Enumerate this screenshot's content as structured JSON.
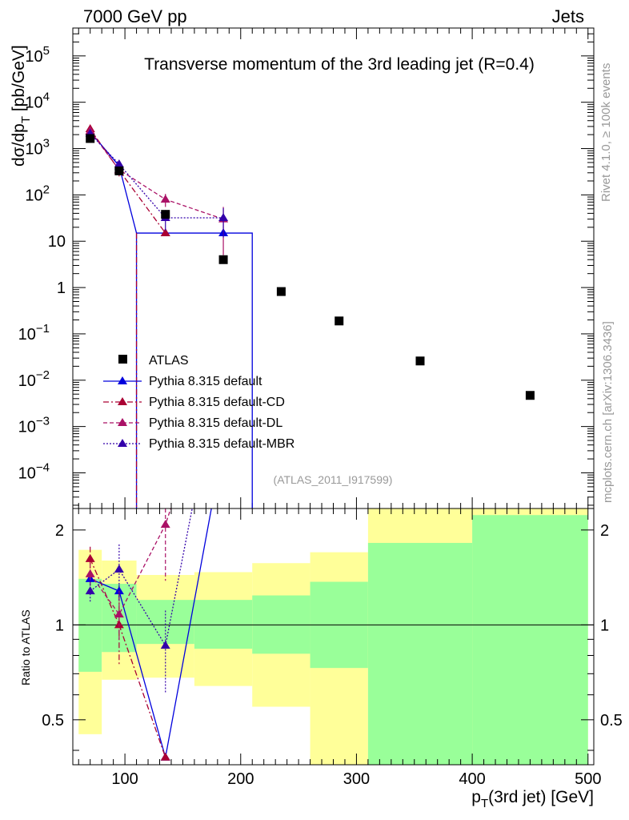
{
  "header": {
    "left": "7000 GeV pp",
    "right": "Jets"
  },
  "side_labels": {
    "rivet": "Rivet 4.1.0, ≥ 100k events",
    "mcplots": "mcplots.cern.ch [arXiv:1306.3436]"
  },
  "chart_data": {
    "type": "scatter",
    "title": "Transverse momentum of the 3rd leading jet (R=0.4)",
    "analysis_id": "(ATLAS_2011_I917599)",
    "xlabel_main": "p",
    "xlabel_sub": "T",
    "xlabel_rest": "(3rd jet) [GeV]",
    "ylabel_main": "dσ/dp",
    "ylabel_sub": "T",
    "ylabel_rest": " [pb/GeV]",
    "ratio_ylabel": "Ratio to ATLAS",
    "xlim": [
      55,
      505
    ],
    "ylim": [
      1.7e-05,
      400000
    ],
    "ratio_ylim": [
      0.36,
      2.34
    ],
    "x_ticks": [
      {
        "v": 100,
        "label": "100"
      },
      {
        "v": 200,
        "label": "200"
      },
      {
        "v": 300,
        "label": "300"
      },
      {
        "v": 400,
        "label": "400"
      },
      {
        "v": 500,
        "label": "500"
      }
    ],
    "y_ticks": [
      {
        "v": 0.0001,
        "base": "10",
        "exp": "−4"
      },
      {
        "v": 0.001,
        "base": "10",
        "exp": "−3"
      },
      {
        "v": 0.01,
        "base": "10",
        "exp": "−2"
      },
      {
        "v": 0.1,
        "base": "10",
        "exp": "−1"
      },
      {
        "v": 1,
        "base": "1",
        "exp": ""
      },
      {
        "v": 10,
        "base": "10",
        "exp": ""
      },
      {
        "v": 100,
        "base": "10",
        "exp": "2"
      },
      {
        "v": 1000,
        "base": "10",
        "exp": "3"
      },
      {
        "v": 10000,
        "base": "10",
        "exp": "4"
      },
      {
        "v": 100000,
        "base": "10",
        "exp": "5"
      }
    ],
    "ratio_ticks": [
      {
        "v": 0.5,
        "label": "0.5"
      },
      {
        "v": 1,
        "label": "1"
      },
      {
        "v": 2,
        "label": "2"
      }
    ],
    "data": {
      "name": "ATLAS",
      "x": [
        70,
        95,
        135,
        185,
        235,
        285,
        355,
        450
      ],
      "y": [
        1650,
        330,
        38,
        4.0,
        0.82,
        0.19,
        0.026,
        0.0047
      ]
    },
    "bins": [
      {
        "lo": 60,
        "hi": 80,
        "g_lo": 0.71,
        "g_hi": 1.4,
        "y_lo": 0.45,
        "y_hi": 1.73
      },
      {
        "lo": 80,
        "hi": 110,
        "g_lo": 0.82,
        "g_hi": 1.35,
        "y_lo": 0.67,
        "y_hi": 1.6
      },
      {
        "lo": 110,
        "hi": 160,
        "g_lo": 0.87,
        "g_hi": 1.2,
        "y_lo": 0.68,
        "y_hi": 1.44
      },
      {
        "lo": 160,
        "hi": 210,
        "g_lo": 0.84,
        "g_hi": 1.2,
        "y_lo": 0.64,
        "y_hi": 1.47
      },
      {
        "lo": 210,
        "hi": 260,
        "g_lo": 0.81,
        "g_hi": 1.24,
        "y_lo": 0.55,
        "y_hi": 1.57
      },
      {
        "lo": 260,
        "hi": 310,
        "g_lo": 0.73,
        "g_hi": 1.37,
        "y_lo": 0.36,
        "y_hi": 1.7
      },
      {
        "lo": 310,
        "hi": 400,
        "g_lo": 0.36,
        "g_hi": 1.82,
        "y_lo": 0.36,
        "y_hi": 2.34
      },
      {
        "lo": 400,
        "hi": 500,
        "g_lo": 0.36,
        "g_hi": 2.23,
        "y_lo": 0.36,
        "y_hi": 2.34
      }
    ],
    "band_colors": {
      "green": "#99ff99",
      "yellow": "#ffff99"
    },
    "series": [
      {
        "name": "Pythia 8.315 default",
        "color": "#0000dd",
        "dash": "",
        "hist": true,
        "x": [
          70,
          95,
          135,
          185
        ],
        "y": [
          2300,
          420,
          15,
          15
        ],
        "y_err": [
          250,
          60,
          0,
          0
        ],
        "ratio_x": [
          70,
          95,
          135,
          185
        ],
        "ratio": [
          1.4,
          1.28,
          0.38,
          3.75
        ],
        "ratio_err": [
          0.05,
          0.06,
          0,
          0
        ]
      },
      {
        "name": "Pythia 8.315 default-CD",
        "color": "#aa0033",
        "dash": "7,3,2,3",
        "hist": false,
        "x": [
          70,
          95,
          135
        ],
        "y": [
          2650,
          340,
          15
        ],
        "y_err": [
          300,
          90,
          0
        ],
        "ratio_x": [
          70,
          95,
          135
        ],
        "ratio": [
          1.62,
          1.0,
          0.38
        ],
        "ratio_err": [
          0.15,
          0.25,
          0
        ]
      },
      {
        "name": "Pythia 8.315 default-DL",
        "color": "#aa1166",
        "dash": "5,3",
        "hist": false,
        "x": [
          70,
          95,
          135,
          185
        ],
        "y": [
          2400,
          350,
          80,
          30
        ],
        "y_err": [
          250,
          80,
          25,
          25
        ],
        "ratio_x": [
          70,
          95,
          135,
          185
        ],
        "ratio": [
          1.45,
          1.08,
          2.08,
          7.5
        ],
        "ratio_err": [
          0.12,
          0.2,
          0.7,
          0
        ]
      },
      {
        "name": "Pythia 8.315 default-MBR",
        "color": "#3300aa",
        "dash": "2,2",
        "hist": false,
        "x": [
          70,
          95,
          135,
          185
        ],
        "y": [
          2100,
          460,
          32,
          32
        ],
        "y_err": [
          250,
          80,
          15,
          20
        ],
        "ratio_x": [
          70,
          95,
          135,
          185
        ],
        "ratio": [
          1.28,
          1.5,
          0.86,
          7.5
        ],
        "ratio_err": [
          0.1,
          0.3,
          0.25,
          0
        ]
      }
    ],
    "legend_position": "lower-left"
  }
}
